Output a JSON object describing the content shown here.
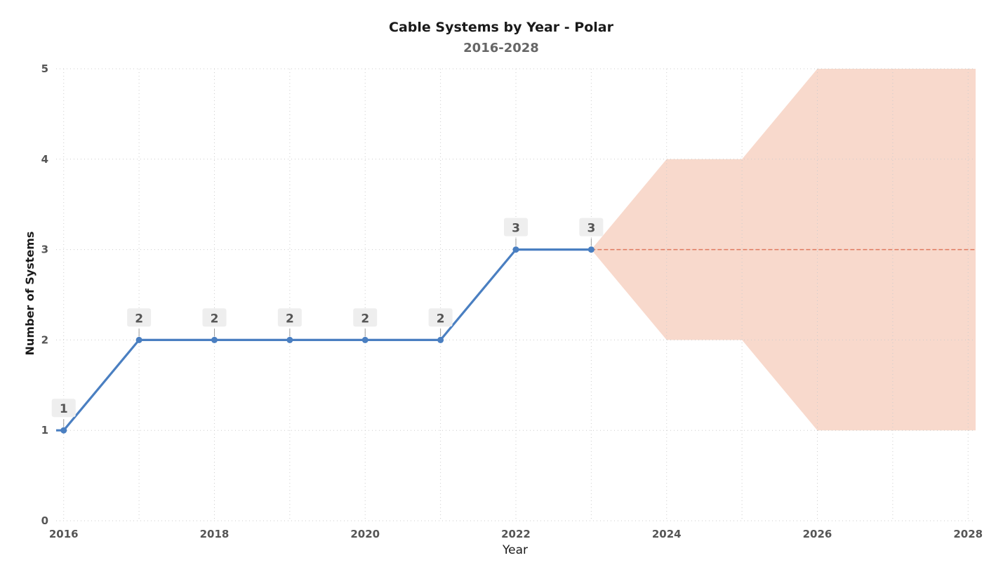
{
  "chart_data": {
    "type": "line",
    "title": "Cable Systems by Year - Polar",
    "subtitle": "2016-2028",
    "xlabel": "Year",
    "ylabel": "Number of Systems",
    "xlim": [
      2015.9,
      2028.1
    ],
    "ylim": [
      0,
      5
    ],
    "x_ticks": [
      2016,
      2018,
      2020,
      2022,
      2024,
      2026,
      2028
    ],
    "y_ticks": [
      0,
      1,
      2,
      3,
      4,
      5
    ],
    "grid": true,
    "series": [
      {
        "x": [
          2016,
          2017,
          2018,
          2019,
          2020,
          2021,
          2022,
          2023
        ],
        "values": [
          1,
          2,
          2,
          2,
          2,
          2,
          3,
          3
        ],
        "color": "#4a7fc1"
      }
    ],
    "forecast": {
      "x": [
        2023,
        2028.1
      ],
      "values": [
        3,
        3
      ],
      "color": "#e07a5f"
    },
    "forecast_band": {
      "x": [
        2023,
        2024,
        2025,
        2026,
        2028.1
      ],
      "upper": [
        3,
        4,
        4,
        5,
        5
      ],
      "lower": [
        3,
        2,
        2,
        1,
        1
      ],
      "color": "#f8d9cc"
    },
    "data_labels": [
      "1",
      "2",
      "2",
      "2",
      "2",
      "2",
      "3",
      "3"
    ]
  }
}
